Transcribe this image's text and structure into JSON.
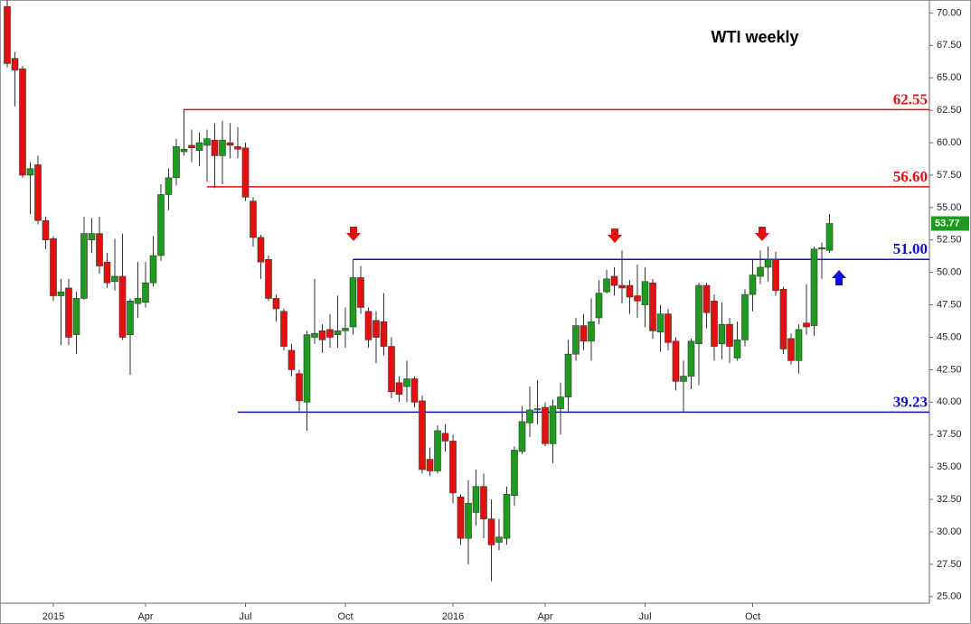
{
  "chart_data": {
    "type": "candlestick",
    "title": "WTI weekly",
    "categories": [
      null,
      null,
      null,
      null,
      null,
      null,
      "2015",
      null,
      null,
      null,
      null,
      null,
      null,
      null,
      null,
      null,
      null,
      null,
      "Apr",
      null,
      null,
      null,
      null,
      null,
      null,
      null,
      null,
      null,
      null,
      null,
      null,
      "Jul",
      null,
      null,
      null,
      null,
      null,
      null,
      null,
      null,
      null,
      null,
      null,
      null,
      "Oct",
      null,
      null,
      null,
      null,
      null,
      null,
      null,
      null,
      null,
      null,
      null,
      null,
      null,
      "2016",
      null,
      null,
      null,
      null,
      null,
      null,
      null,
      null,
      null,
      null,
      null,
      "Apr",
      null,
      null,
      null,
      null,
      null,
      null,
      null,
      null,
      null,
      null,
      null,
      null,
      "Jul",
      null,
      null,
      null,
      null,
      null,
      null,
      null,
      null,
      null,
      null,
      null,
      null,
      null,
      "Oct",
      null,
      null,
      null,
      null,
      null,
      null,
      null,
      null,
      null,
      null
    ],
    "open": [
      70.5,
      66.5,
      65.7,
      57.5,
      58.3,
      54.0,
      52.6,
      48.2,
      48.8,
      45.2,
      48.0,
      52.5,
      53.0,
      50.8,
      49.3,
      49.7,
      45.2,
      47.6,
      47.7,
      49.2,
      51.3,
      56.0,
      57.3,
      59.3,
      59.8,
      59.4,
      59.8,
      60.2,
      59.0,
      60.0,
      59.7,
      59.6,
      55.5,
      52.7,
      51.0,
      48.0,
      47.0,
      44.0,
      42.2,
      40.0,
      45.0,
      45.5,
      45.6,
      45.2,
      45.5,
      45.8,
      49.6,
      47.0,
      46.3,
      46.2,
      44.3,
      41.5,
      41.2,
      41.8,
      40.1,
      35.6,
      34.7,
      37.6,
      37.0,
      32.7,
      29.5,
      31.5,
      33.5,
      31.0,
      29.2,
      29.5,
      32.8,
      36.2,
      38.4,
      39.4,
      39.6,
      36.8,
      39.5,
      40.4,
      43.7,
      45.9,
      44.7,
      46.5,
      48.5,
      49.7,
      49.0,
      49.0,
      48.2,
      47.5,
      49.2,
      45.4,
      46.8,
      44.7,
      41.6,
      42.0,
      44.5,
      49.0,
      47.8,
      44.5,
      46.0,
      43.4,
      44.8,
      48.3,
      49.7,
      50.4,
      51.0,
      48.7,
      44.9,
      43.2,
      46.1,
      45.9,
      51.8,
      51.7
    ],
    "high": [
      71,
      67,
      65.9,
      58.5,
      59,
      54.3,
      52.8,
      49.5,
      49.5,
      48.5,
      54.3,
      54.2,
      54.3,
      51.5,
      52.6,
      53.0,
      48.0,
      50.8,
      50.8,
      52.8,
      56.8,
      58.0,
      60.3,
      62.6,
      61.0,
      60.8,
      61.0,
      61.5,
      61.7,
      61.5,
      61.2,
      60.0,
      55.8,
      52.9,
      51.3,
      48.3,
      47.2,
      44.5,
      42.5,
      45.5,
      49.5,
      46.0,
      46.8,
      48.2,
      47.3,
      51.0,
      50.5,
      47.3,
      47.0,
      48.4,
      45.0,
      42.0,
      43.2,
      42.0,
      40.5,
      36.5,
      38.2,
      38.3,
      37.5,
      32.9,
      34.0,
      34.8,
      34.5,
      32.5,
      31.0,
      33.5,
      36.6,
      39.7,
      41.2,
      41.7,
      40.0,
      40.2,
      41.5,
      44.8,
      46.5,
      46.8,
      48.0,
      49.4,
      50.2,
      50.4,
      51.7,
      49.4,
      50.6,
      50.4,
      49.5,
      47.5,
      47.2,
      45.0,
      43.2,
      44.9,
      49.2,
      49.2,
      48.3,
      47.7,
      46.5,
      46.2,
      48.7,
      51.0,
      51.7,
      52.0,
      51.6,
      48.9,
      45.3,
      46.0,
      49.1,
      52.0,
      52.3,
      54.5
    ],
    "low": [
      65.8,
      62.8,
      57.3,
      54.5,
      53.7,
      51.8,
      47.8,
      44.4,
      44.4,
      43.7,
      47.9,
      51.5,
      49.9,
      48.8,
      48.6,
      44.8,
      42.1,
      46.5,
      47.3,
      48.9,
      50.9,
      54.8,
      56.7,
      59.0,
      58.5,
      58.2,
      57.0,
      56.5,
      56.8,
      58.8,
      58.8,
      55.5,
      52.0,
      49.5,
      47.8,
      46.2,
      44.0,
      42.0,
      39.3,
      37.8,
      44.5,
      43.8,
      44.2,
      44.2,
      44.2,
      45.2,
      46.8,
      44.2,
      43.0,
      43.6,
      40.3,
      40.0,
      40.0,
      39.6,
      34.5,
      34.3,
      34.5,
      36.2,
      32.2,
      29.0,
      27.5,
      30.5,
      29.5,
      26.2,
      28.6,
      29.0,
      32.0,
      36.0,
      37.3,
      38.3,
      36.6,
      35.3,
      37.5,
      39.3,
      43.2,
      44.0,
      43.2,
      46.0,
      48.4,
      48.2,
      47.6,
      46.8,
      46.5,
      45.8,
      44.9,
      43.9,
      44.0,
      40.9,
      39.2,
      41.0,
      41.3,
      45.7,
      43.2,
      43.3,
      43.0,
      43.2,
      44.3,
      47.0,
      49.1,
      49.3,
      48.2,
      43.7,
      42.9,
      42.2,
      45.2,
      45.1,
      49.5,
      51.5
    ],
    "close": [
      66.1,
      65.6,
      57.5,
      58.0,
      54.0,
      52.5,
      48.2,
      48.5,
      45.0,
      48.0,
      53.0,
      53.0,
      50.5,
      49.2,
      49.7,
      45.0,
      47.8,
      48.0,
      49.2,
      51.3,
      56.0,
      57.3,
      59.7,
      59.5,
      59.6,
      60.0,
      60.3,
      59.0,
      60.2,
      59.8,
      59.5,
      55.8,
      52.7,
      50.8,
      48.0,
      47.2,
      44.3,
      42.5,
      40.1,
      45.2,
      45.3,
      44.8,
      45.0,
      45.5,
      45.7,
      49.6,
      47.3,
      44.8,
      45.0,
      44.3,
      40.8,
      40.6,
      41.8,
      40.0,
      34.8,
      34.7,
      37.8,
      37.0,
      33.0,
      29.5,
      32.2,
      33.5,
      31.0,
      29.0,
      29.6,
      32.9,
      36.3,
      38.5,
      39.4,
      39.5,
      36.8,
      39.7,
      40.4,
      43.7,
      45.9,
      44.7,
      46.2,
      48.4,
      49.5,
      49.0,
      48.8,
      48.1,
      47.8,
      49.3,
      45.5,
      46.8,
      44.6,
      41.6,
      42.0,
      44.7,
      49.0,
      46.9,
      44.3,
      46.0,
      44.3,
      44.8,
      48.3,
      49.8,
      50.4,
      51.0,
      48.6,
      44.1,
      43.2,
      45.6,
      45.8,
      51.8,
      51.9,
      53.77
    ],
    "up_color": "#1e9b1e",
    "down_color": "#e31010",
    "levels": [
      {
        "value": 62.55,
        "label": "62.55",
        "color": "#e31010"
      },
      {
        "value": 56.6,
        "label": "56.60",
        "color": "#e31010"
      },
      {
        "value": 51,
        "label": "51.00",
        "color": "#1010cc"
      },
      {
        "value": 39.23,
        "label": "39.23",
        "color": "#1010cc"
      }
    ],
    "last_price": {
      "value": 53.77,
      "label": "53.77",
      "color": "#1e9b1e"
    },
    "ylim": [
      24.5,
      71
    ],
    "yticks": [
      {
        "value": 25,
        "label": "25.00"
      },
      {
        "value": 27.5,
        "label": "27.50"
      },
      {
        "value": 30,
        "label": "30.00"
      },
      {
        "value": 32.5,
        "label": "32.50"
      },
      {
        "value": 35,
        "label": "35.00"
      },
      {
        "value": 37.5,
        "label": "37.50"
      },
      {
        "value": 40,
        "label": "40.00"
      },
      {
        "value": 42.5,
        "label": "42.50"
      },
      {
        "value": 45,
        "label": "45.00"
      },
      {
        "value": 47.5,
        "label": "47.50"
      },
      {
        "value": 50,
        "label": "50.00"
      },
      {
        "value": 52.5,
        "label": "52.50"
      },
      {
        "value": 55,
        "label": "55.00"
      },
      {
        "value": 57.5,
        "label": "57.50"
      },
      {
        "value": 60,
        "label": "60.00"
      },
      {
        "value": 62.5,
        "label": "62.50"
      },
      {
        "value": 65,
        "label": "65.00"
      },
      {
        "value": 67.5,
        "label": "67.50"
      },
      {
        "value": 70,
        "label": "70.00"
      }
    ],
    "grid": false
  }
}
